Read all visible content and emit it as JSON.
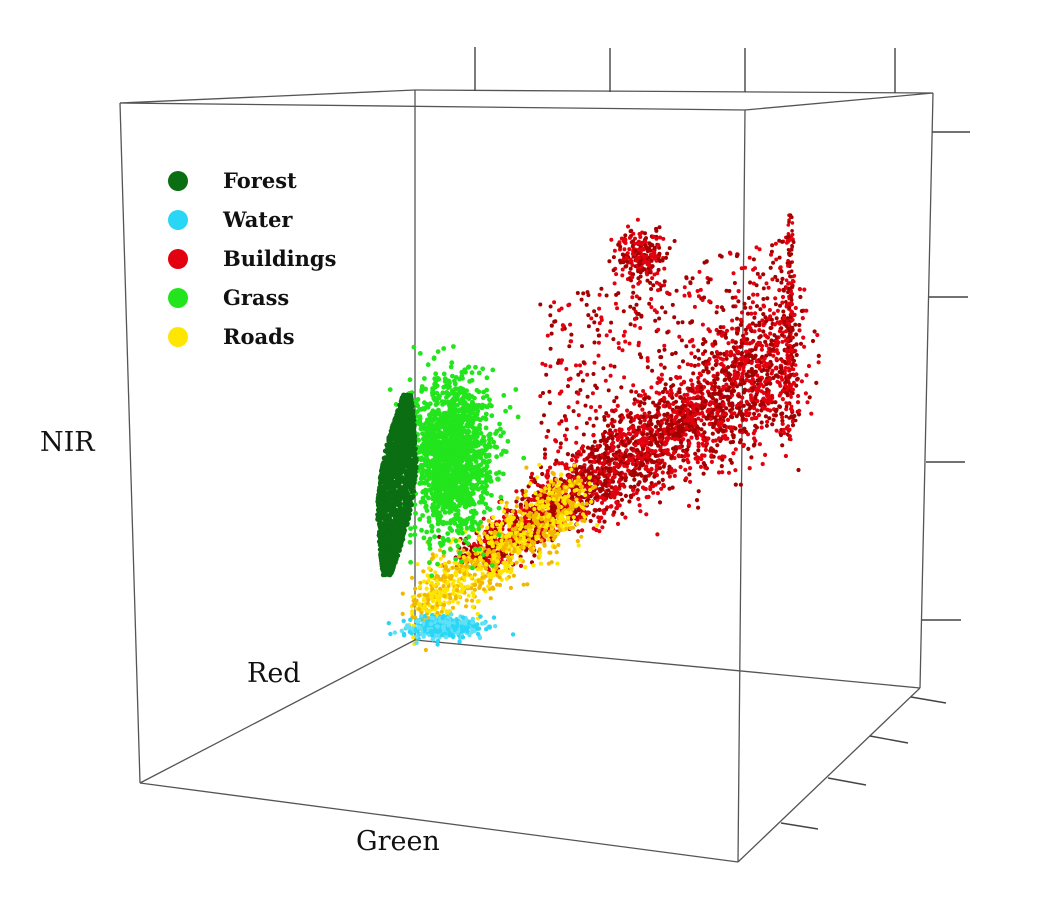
{
  "chart_data": {
    "type": "scatter",
    "projection": "3d",
    "title": "",
    "axes": {
      "x": "Green",
      "y": "Red",
      "z": "NIR"
    },
    "grid": false,
    "legend_position": "top-left",
    "series": [
      {
        "name": "Forest",
        "color": "#0b6e12"
      },
      {
        "name": "Water",
        "color": "#29d6f5"
      },
      {
        "name": "Buildings",
        "color": "#e3000f"
      },
      {
        "name": "Grass",
        "color": "#22e51d"
      },
      {
        "name": "Roads",
        "color": "#ffe600"
      }
    ]
  }
}
